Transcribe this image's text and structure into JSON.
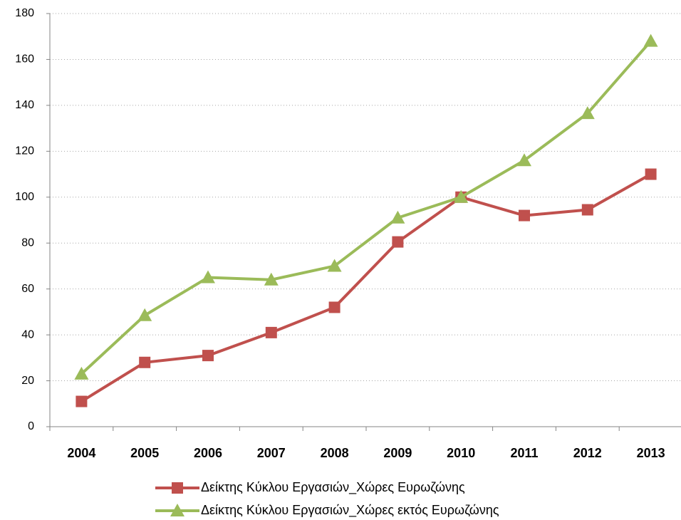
{
  "chart_data": {
    "type": "line",
    "categories": [
      "2004",
      "2005",
      "2006",
      "2007",
      "2008",
      "2009",
      "2010",
      "2011",
      "2012",
      "2013"
    ],
    "series": [
      {
        "name": "Δείκτης Κύκλου Εργασιών_Χώρες Ευρωζώνης",
        "color": "#c0504d",
        "marker": "square",
        "values": [
          11,
          28,
          31,
          41,
          52,
          80.5,
          100,
          92,
          94.5,
          110
        ]
      },
      {
        "name": "Δείκτης Κύκλου Εργασιών_Χώρες εκτός Ευρωζώνης",
        "color": "#9bbb59",
        "marker": "triangle",
        "values": [
          23,
          48.5,
          65,
          64,
          70,
          91,
          100,
          116,
          136.5,
          168
        ]
      }
    ],
    "ylim": [
      0,
      180
    ],
    "yticks": [
      0,
      20,
      40,
      60,
      80,
      100,
      120,
      140,
      160,
      180
    ],
    "grid": true,
    "legend": "bottom"
  }
}
